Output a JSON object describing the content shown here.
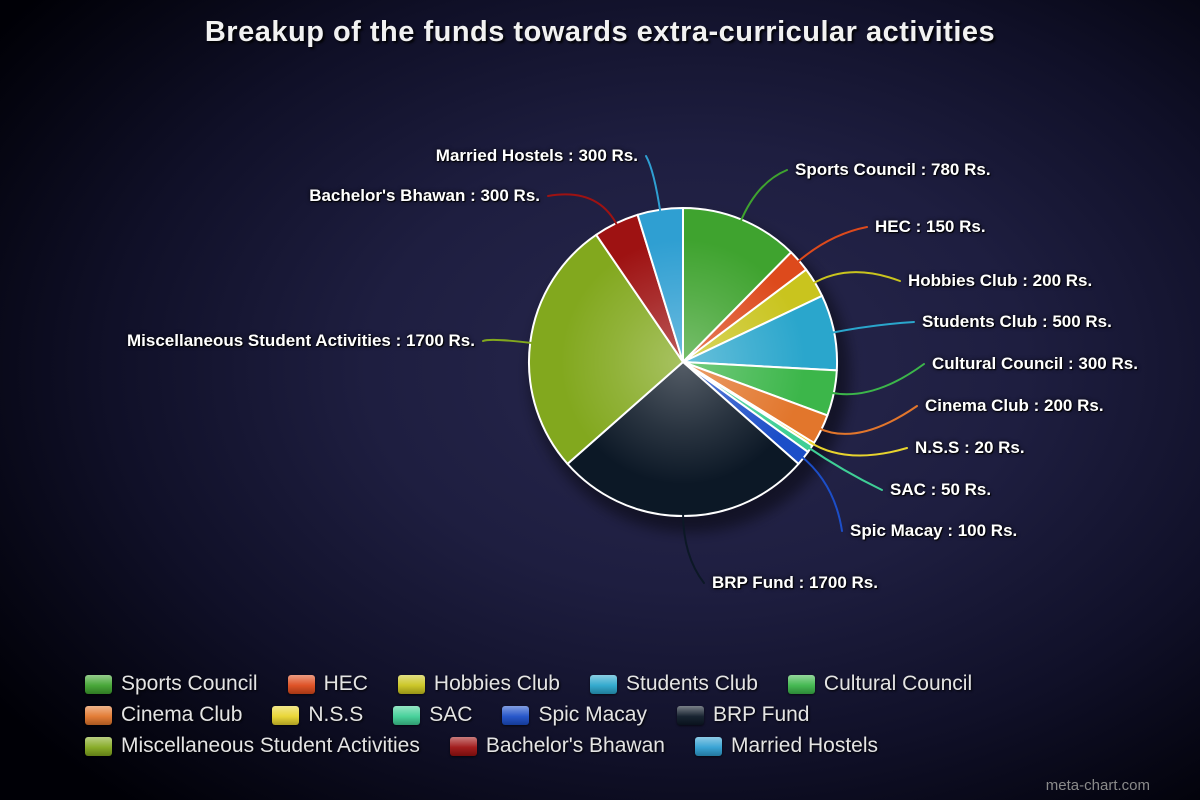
{
  "title": "Breakup of the funds towards extra-curricular activities",
  "watermark": "meta-chart.com",
  "chart_data": {
    "type": "pie",
    "title": "Breakup of the funds towards extra-curricular activities",
    "value_unit": "Rs.",
    "total": 6300,
    "legend_position": "bottom",
    "start_angle_deg": 0,
    "direction": "clockwise",
    "slices": [
      {
        "label": "Sports Council",
        "value": 780,
        "display": "Sports Council : 780 Rs.",
        "color": "#3fa32f"
      },
      {
        "label": "HEC",
        "value": 150,
        "display": "HEC : 150 Rs.",
        "color": "#dd4a1c"
      },
      {
        "label": "Hobbies Club",
        "value": 200,
        "display": "Hobbies Club : 200 Rs.",
        "color": "#c9c41e"
      },
      {
        "label": "Students Club",
        "value": 500,
        "display": "Students Club : 500 Rs.",
        "color": "#2aa6cc"
      },
      {
        "label": "Cultural Council",
        "value": 300,
        "display": "Cultural Council : 300 Rs.",
        "color": "#3cb64a"
      },
      {
        "label": "Cinema Club",
        "value": 200,
        "display": "Cinema Club : 200 Rs.",
        "color": "#e2762c"
      },
      {
        "label": "N.S.S",
        "value": 20,
        "display": "N.S.S : 20 Rs.",
        "color": "#e8d42e"
      },
      {
        "label": "SAC",
        "value": 50,
        "display": "SAC : 50 Rs.",
        "color": "#3fcf96"
      },
      {
        "label": "Spic Macay",
        "value": 100,
        "display": "Spic Macay : 100 Rs.",
        "color": "#1c4ec8"
      },
      {
        "label": "BRP Fund",
        "value": 1700,
        "display": "BRP Fund : 1700 Rs.",
        "color": "#0c1826"
      },
      {
        "label": "Miscellaneous Student Activities",
        "value": 1700,
        "display": "Miscellaneous Student Activities : 1700 Rs.",
        "color": "#82a81e"
      },
      {
        "label": "Bachelor's Bhawan",
        "value": 300,
        "display": "Bachelor's Bhawan : 300 Rs.",
        "color": "#9e1212"
      },
      {
        "label": "Married Hostels",
        "value": 300,
        "display": "Married Hostels : 300 Rs.",
        "color": "#2f9fd2"
      }
    ]
  }
}
